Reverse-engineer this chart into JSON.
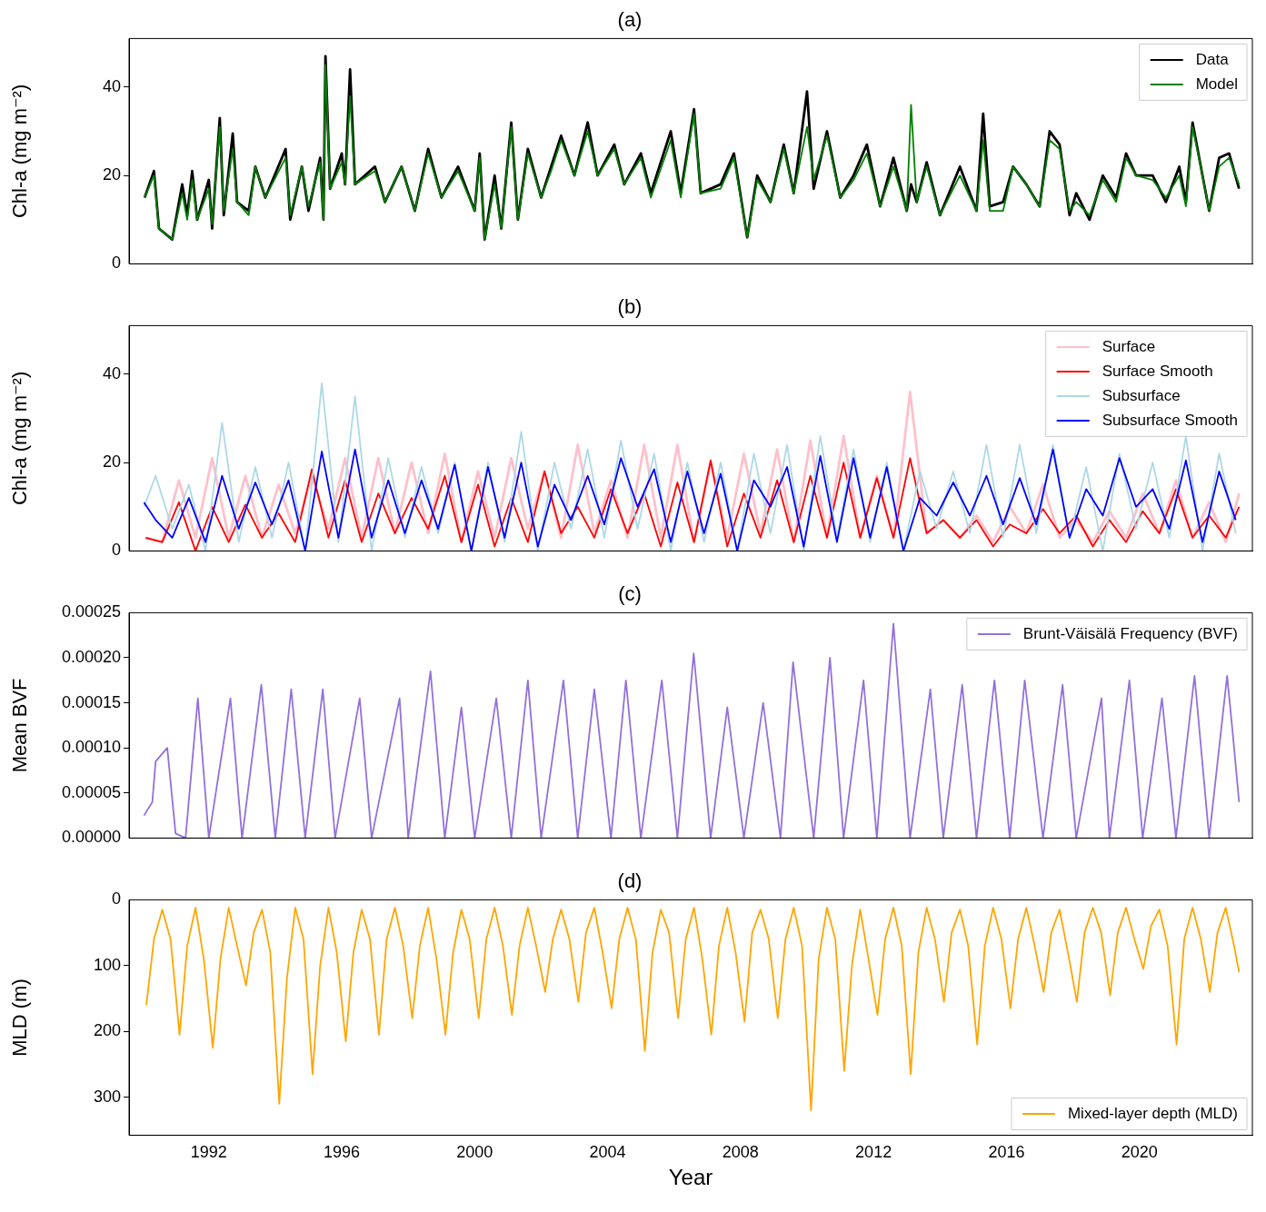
{
  "chart_data": [
    {
      "type": "line",
      "title": "(a)",
      "ylabel": "Chl-a (mg m⁻²)",
      "xlim": [
        1989.6,
        2023.4
      ],
      "xticks": [
        1992,
        1996,
        2000,
        2004,
        2008,
        2012,
        2016,
        2020
      ],
      "ylim": [
        0,
        51
      ],
      "yticks": [
        0,
        20,
        40
      ],
      "tick_labels": "y",
      "legend": "top right",
      "x": [
        1990.07,
        1990.35,
        1990.5,
        1990.9,
        1991.2,
        1991.35,
        1991.5,
        1991.65,
        1992.0,
        1992.1,
        1992.33,
        1992.45,
        1992.72,
        1992.85,
        1993.2,
        1993.4,
        1993.7,
        1994.31,
        1994.45,
        1994.8,
        1995.0,
        1995.35,
        1995.45,
        1995.51,
        1995.65,
        1996.0,
        1996.1,
        1996.25,
        1996.4,
        1997.0,
        1997.3,
        1997.8,
        1998.2,
        1998.6,
        1999.0,
        1999.5,
        2000.0,
        2000.15,
        2000.3,
        2000.6,
        2000.8,
        2001.1,
        2001.3,
        2001.6,
        2002.0,
        2002.3,
        2002.6,
        2003.0,
        2003.4,
        2003.7,
        2004.2,
        2004.5,
        2005.0,
        2005.3,
        2005.9,
        2006.2,
        2006.6,
        2006.8,
        2007.4,
        2007.8,
        2008.2,
        2008.5,
        2008.9,
        2009.3,
        2009.6,
        2010.0,
        2010.2,
        2010.6,
        2011.0,
        2011.4,
        2011.8,
        2012.2,
        2012.6,
        2013.0,
        2013.13,
        2013.3,
        2013.6,
        2014.0,
        2014.6,
        2015.1,
        2015.3,
        2015.5,
        2015.9,
        2016.2,
        2016.6,
        2017.0,
        2017.3,
        2017.6,
        2017.9,
        2018.1,
        2018.5,
        2018.9,
        2019.3,
        2019.6,
        2019.9,
        2020.4,
        2020.8,
        2021.2,
        2021.4,
        2021.6,
        2021.9,
        2022.1,
        2022.4,
        2022.7,
        2023.0
      ],
      "series": [
        {
          "name": "Data",
          "color": "#000000",
          "values": [
            15,
            21,
            8,
            5.5,
            18,
            11,
            21,
            10,
            19,
            8,
            33,
            11,
            29.5,
            14,
            12,
            22,
            15,
            26,
            10,
            22,
            12,
            24,
            10,
            47,
            17,
            25,
            18,
            44,
            18,
            22,
            14,
            22,
            12,
            26,
            15,
            22,
            12,
            25,
            5.5,
            20,
            8,
            32,
            10,
            26,
            15,
            22,
            29,
            20,
            32,
            20,
            27,
            18,
            25,
            16,
            30,
            16,
            35,
            16,
            18,
            25,
            6,
            20,
            14,
            27,
            16,
            39,
            17,
            30,
            15,
            20,
            27,
            13,
            24,
            12,
            18,
            14,
            23,
            11,
            22,
            12,
            34,
            13,
            14,
            22,
            18,
            13,
            30,
            27,
            11,
            16,
            10,
            20,
            15,
            25,
            20,
            20,
            14,
            22,
            14,
            32,
            20,
            12,
            24,
            25,
            17
          ]
        },
        {
          "name": "Model",
          "color": "#008000",
          "values": [
            15,
            20,
            8,
            5.5,
            16,
            10,
            19,
            10,
            17,
            9,
            31,
            12,
            26,
            14,
            11,
            22,
            15,
            24,
            11,
            22,
            13,
            23,
            10,
            45,
            17,
            23,
            18,
            38,
            18,
            21,
            14,
            22,
            12,
            25,
            15,
            21,
            12,
            24,
            5.5,
            18,
            8,
            31,
            10,
            25,
            15,
            21,
            28,
            20,
            30,
            20,
            26,
            18,
            24,
            15,
            28,
            15,
            34,
            16,
            17,
            24,
            6,
            19,
            14,
            26,
            16,
            31,
            19,
            29,
            15,
            19,
            25,
            13,
            22,
            12,
            36,
            14,
            22,
            11,
            20,
            12,
            28,
            12,
            12,
            22,
            18,
            13,
            28,
            26,
            12,
            14,
            11,
            19,
            14,
            24,
            20,
            19,
            15,
            20,
            13,
            31,
            20,
            12,
            22,
            24,
            18
          ]
        }
      ]
    },
    {
      "type": "line",
      "title": "(b)",
      "ylabel": "Chl-a (mg m⁻²)",
      "xlim": [
        1989.6,
        2023.4
      ],
      "xticks": [
        1992,
        1996,
        2000,
        2004,
        2008,
        2012,
        2016,
        2020
      ],
      "ylim": [
        0,
        51
      ],
      "yticks": [
        0,
        20,
        40
      ],
      "tick_labels": "y",
      "legend": "top right",
      "series": [
        {
          "name": "Surface",
          "color": "#ffc0cb",
          "x": [
            1990.1,
            1990.6,
            1991.1,
            1991.6,
            1992.1,
            1992.6,
            1993.1,
            1993.6,
            1994.1,
            1994.6,
            1995.1,
            1995.6,
            1996.1,
            1996.6,
            1997.1,
            1997.6,
            1998.1,
            1998.6,
            1999.1,
            1999.6,
            2000.1,
            2000.6,
            2001.1,
            2001.6,
            2002.1,
            2002.6,
            2003.1,
            2003.6,
            2004.1,
            2004.6,
            2005.1,
            2005.6,
            2006.1,
            2006.6,
            2007.1,
            2007.6,
            2008.1,
            2008.6,
            2009.1,
            2009.6,
            2010.1,
            2010.6,
            2011.1,
            2011.6,
            2012.1,
            2012.6,
            2013.1,
            2013.6,
            2014.1,
            2014.6,
            2015.1,
            2015.6,
            2016.1,
            2016.6,
            2017.1,
            2017.6,
            2018.1,
            2018.6,
            2019.1,
            2019.6,
            2020.1,
            2020.6,
            2021.1,
            2021.6,
            2022.1,
            2022.6,
            2023.0
          ],
          "values": [
            3,
            2,
            16,
            3,
            21,
            3,
            17,
            3,
            15,
            4,
            17,
            5,
            21,
            3,
            21,
            4,
            20,
            4,
            22,
            2,
            18,
            3,
            21,
            5,
            18,
            3,
            24,
            4,
            16,
            3,
            24,
            3,
            24,
            2,
            20,
            3,
            22,
            4,
            23,
            2,
            25,
            3,
            26,
            3,
            17,
            3,
            36,
            4,
            7,
            3,
            8,
            2,
            10,
            4,
            15,
            3,
            7,
            2,
            9,
            3,
            13,
            4,
            16,
            3,
            11,
            2,
            13
          ]
        },
        {
          "name": "Surface Smooth",
          "color": "#ff0000",
          "x": [
            1990.1,
            1990.6,
            1991.1,
            1991.6,
            1992.1,
            1992.6,
            1993.1,
            1993.6,
            1994.1,
            1994.6,
            1995.1,
            1995.6,
            1996.1,
            1996.6,
            1997.1,
            1997.6,
            1998.1,
            1998.6,
            1999.1,
            1999.6,
            2000.1,
            2000.6,
            2001.1,
            2001.6,
            2002.1,
            2002.6,
            2003.1,
            2003.6,
            2004.1,
            2004.6,
            2005.1,
            2005.6,
            2006.1,
            2006.6,
            2007.1,
            2007.6,
            2008.1,
            2008.6,
            2009.1,
            2009.6,
            2010.1,
            2010.6,
            2011.1,
            2011.6,
            2012.1,
            2012.6,
            2013.1,
            2013.6,
            2014.1,
            2014.6,
            2015.1,
            2015.6,
            2016.1,
            2016.6,
            2017.1,
            2017.6,
            2018.1,
            2018.6,
            2019.1,
            2019.6,
            2020.1,
            2020.6,
            2021.1,
            2021.6,
            2022.1,
            2022.6,
            2023.0
          ],
          "values": [
            3,
            2,
            11,
            0,
            10,
            2,
            10.5,
            3,
            8.5,
            2,
            18.5,
            3,
            16,
            2,
            13,
            4,
            12,
            5,
            17,
            2,
            15,
            1,
            12,
            2,
            18,
            4,
            10,
            3,
            14,
            4,
            13,
            1,
            15.5,
            2,
            20.5,
            1,
            13,
            3,
            16,
            2,
            17,
            3,
            20,
            3,
            16.5,
            3,
            21,
            4,
            7,
            3,
            7,
            1,
            6,
            4,
            9.5,
            4,
            8,
            1,
            7,
            2,
            9,
            4,
            14,
            3,
            8,
            3,
            10
          ]
        },
        {
          "name": "Subsurface",
          "color": "#add8e6",
          "x": [
            1990.05,
            1990.4,
            1990.9,
            1991.4,
            1991.9,
            1992.4,
            1992.9,
            1993.4,
            1993.9,
            1994.4,
            1994.9,
            1995.4,
            1995.9,
            1996.4,
            1996.9,
            1997.4,
            1997.9,
            1998.4,
            1998.9,
            1999.4,
            1999.9,
            2000.4,
            2000.9,
            2001.4,
            2001.9,
            2002.4,
            2002.9,
            2003.4,
            2003.9,
            2004.4,
            2004.9,
            2005.4,
            2005.9,
            2006.4,
            2006.9,
            2007.4,
            2007.9,
            2008.4,
            2008.9,
            2009.4,
            2009.9,
            2010.4,
            2010.9,
            2011.4,
            2011.9,
            2012.4,
            2012.9,
            2013.4,
            2013.9,
            2014.4,
            2014.9,
            2015.4,
            2015.9,
            2016.4,
            2016.9,
            2017.4,
            2017.9,
            2018.4,
            2018.9,
            2019.4,
            2019.9,
            2020.4,
            2020.9,
            2021.4,
            2021.9,
            2022.4,
            2022.9
          ],
          "values": [
            10,
            17,
            5,
            15,
            0,
            29,
            2,
            19,
            3,
            20,
            0,
            38,
            2,
            35,
            0,
            21,
            3,
            19,
            4,
            20,
            0,
            20,
            2,
            27,
            0,
            20,
            5,
            23,
            3,
            25,
            5,
            22,
            0,
            20,
            2,
            20,
            0,
            22,
            4,
            24,
            0,
            26,
            3,
            23,
            2,
            20,
            0,
            18,
            5,
            18,
            4,
            24,
            3,
            24,
            4,
            24,
            3,
            19,
            0,
            22,
            5,
            20,
            3,
            26,
            0,
            22,
            4
          ]
        },
        {
          "name": "Subsurface Smooth",
          "color": "#0000ff",
          "x": [
            1990.05,
            1990.4,
            1990.9,
            1991.4,
            1991.9,
            1992.4,
            1992.9,
            1993.4,
            1993.9,
            1994.4,
            1994.9,
            1995.4,
            1995.9,
            1996.4,
            1996.9,
            1997.4,
            1997.9,
            1998.4,
            1998.9,
            1999.4,
            1999.9,
            2000.4,
            2000.9,
            2001.4,
            2001.9,
            2002.4,
            2002.9,
            2003.4,
            2003.9,
            2004.4,
            2004.9,
            2005.4,
            2005.9,
            2006.4,
            2006.9,
            2007.4,
            2007.9,
            2008.4,
            2008.9,
            2009.4,
            2009.9,
            2010.4,
            2010.9,
            2011.4,
            2011.9,
            2012.4,
            2012.9,
            2013.4,
            2013.9,
            2014.4,
            2014.9,
            2015.4,
            2015.9,
            2016.4,
            2016.9,
            2017.4,
            2017.9,
            2018.4,
            2018.9,
            2019.4,
            2019.9,
            2020.4,
            2020.9,
            2021.4,
            2021.9,
            2022.4,
            2022.9
          ],
          "values": [
            11,
            7,
            3,
            12,
            2,
            17,
            5,
            15.5,
            6,
            16,
            0,
            22.5,
            3,
            23,
            3,
            16,
            4,
            16,
            5,
            19.5,
            0,
            19,
            3,
            20,
            1,
            15,
            7,
            17,
            6,
            21,
            10,
            18.5,
            2,
            18,
            4,
            17.5,
            0,
            16,
            10,
            19,
            1,
            21.5,
            2,
            21,
            3,
            19,
            0,
            12,
            8,
            15.5,
            8,
            17,
            6,
            16.5,
            6,
            23,
            3,
            14,
            8,
            21,
            10,
            14,
            5,
            20.5,
            2,
            18,
            7
          ]
        }
      ]
    },
    {
      "type": "line",
      "title": "(c)",
      "ylabel": "Mean BVF",
      "xlim": [
        1989.6,
        2023.4
      ],
      "xticks": [
        1992,
        1996,
        2000,
        2004,
        2008,
        2012,
        2016,
        2020
      ],
      "ylim": [
        0,
        0.00025
      ],
      "yticks": [
        {
          "value": 0,
          "label": "0.00000"
        },
        {
          "value": 5e-05,
          "label": "0.00005"
        },
        {
          "value": 0.0001,
          "label": "0.00010"
        },
        {
          "value": 0.00015,
          "label": "0.00015"
        },
        {
          "value": 0.0002,
          "label": "0.00020"
        },
        {
          "value": 0.00025,
          "label": "0.00025"
        }
      ],
      "tick_labels": "y",
      "legend": "top right",
      "series": [
        {
          "name": "Brunt-Väisälä Frequency (BVF)",
          "color": "#9370db",
          "x": [
            1990.05,
            1990.3,
            1990.4,
            1990.75,
            1991.0,
            1991.3,
            1991.67,
            1992.0,
            1992.65,
            1993.0,
            1993.58,
            1994.0,
            1994.48,
            1994.9,
            1995.43,
            1995.8,
            1996.54,
            1996.9,
            1997.74,
            1998.0,
            1998.67,
            1999.1,
            1999.6,
            2000.0,
            2000.65,
            2001.1,
            2001.6,
            2002.0,
            2002.67,
            2003.1,
            2003.6,
            2004.1,
            2004.55,
            2005.0,
            2005.63,
            2006.1,
            2006.59,
            2007.1,
            2007.6,
            2008.1,
            2008.68,
            2009.2,
            2009.58,
            2010.2,
            2010.69,
            2011.1,
            2011.7,
            2012.1,
            2012.6,
            2013.1,
            2013.71,
            2014.1,
            2014.67,
            2015.1,
            2015.64,
            2016.1,
            2016.55,
            2017.1,
            2017.69,
            2018.1,
            2018.86,
            2019.1,
            2019.7,
            2020.1,
            2020.68,
            2021.1,
            2021.66,
            2022.1,
            2022.64,
            2022.8,
            2023.0
          ],
          "values": [
            2.5e-05,
            4e-05,
            8.5e-05,
            0.0001,
            5e-06,
            0,
            0.000155,
            0,
            0.000155,
            0,
            0.00017,
            0,
            0.000165,
            0,
            0.000165,
            0,
            0.000155,
            0,
            0.000155,
            0,
            0.000185,
            0,
            0.000145,
            0,
            0.000155,
            0,
            0.000175,
            0,
            0.000175,
            0,
            0.000165,
            0,
            0.000175,
            0,
            0.000175,
            0,
            0.000205,
            0,
            0.000145,
            0,
            0.00015,
            0,
            0.000195,
            0,
            0.0002,
            0,
            0.000175,
            0,
            0.000238,
            0,
            0.000165,
            0,
            0.00017,
            0,
            0.000175,
            0,
            0.000175,
            0,
            0.00017,
            0,
            0.000155,
            0,
            0.000175,
            0,
            0.000155,
            0,
            0.00018,
            0,
            0.00018,
            0.00012,
            4e-05
          ]
        }
      ]
    },
    {
      "type": "line",
      "title": "(d)",
      "xlabel": "Year",
      "ylabel": "MLD (m)",
      "xlim": [
        1989.6,
        2023.4
      ],
      "xticks": [
        1992,
        1996,
        2000,
        2004,
        2008,
        2012,
        2016,
        2020
      ],
      "ylim": [
        358,
        0
      ],
      "yticks": [
        0,
        100,
        200,
        300
      ],
      "legend": "bottom right",
      "series": [
        {
          "name": "Mixed-layer depth (MLD)",
          "color": "#ffa500",
          "x": [
            1990.12,
            1990.35,
            1990.6,
            1990.85,
            1991.12,
            1991.35,
            1991.6,
            1991.85,
            1992.12,
            1992.35,
            1992.6,
            1992.85,
            1993.12,
            1993.35,
            1993.6,
            1993.85,
            1994.12,
            1994.35,
            1994.6,
            1994.85,
            1995.12,
            1995.35,
            1995.6,
            1995.85,
            1996.12,
            1996.35,
            1996.6,
            1996.85,
            1997.12,
            1997.35,
            1997.6,
            1997.85,
            1998.12,
            1998.35,
            1998.6,
            1998.85,
            1999.12,
            1999.35,
            1999.6,
            1999.85,
            2000.12,
            2000.35,
            2000.6,
            2000.85,
            2001.12,
            2001.35,
            2001.6,
            2001.85,
            2002.12,
            2002.35,
            2002.6,
            2002.85,
            2003.12,
            2003.35,
            2003.6,
            2003.85,
            2004.12,
            2004.35,
            2004.6,
            2004.85,
            2005.12,
            2005.35,
            2005.6,
            2005.85,
            2006.12,
            2006.35,
            2006.6,
            2006.85,
            2007.12,
            2007.35,
            2007.6,
            2007.85,
            2008.12,
            2008.35,
            2008.6,
            2008.85,
            2009.12,
            2009.35,
            2009.6,
            2009.85,
            2010.12,
            2010.35,
            2010.6,
            2010.85,
            2011.12,
            2011.35,
            2011.6,
            2011.85,
            2012.12,
            2012.35,
            2012.6,
            2012.85,
            2013.12,
            2013.35,
            2013.6,
            2013.85,
            2014.12,
            2014.35,
            2014.6,
            2014.85,
            2015.12,
            2015.35,
            2015.6,
            2015.85,
            2016.12,
            2016.35,
            2016.6,
            2016.85,
            2017.12,
            2017.35,
            2017.6,
            2017.85,
            2018.12,
            2018.35,
            2018.6,
            2018.85,
            2019.12,
            2019.35,
            2019.6,
            2019.85,
            2020.12,
            2020.35,
            2020.6,
            2020.85,
            2021.12,
            2021.35,
            2021.6,
            2021.85,
            2022.12,
            2022.35,
            2022.6,
            2022.85,
            2023.0
          ],
          "values": [
            160,
            60,
            15,
            60,
            205,
            70,
            12,
            90,
            225,
            90,
            12,
            70,
            130,
            50,
            15,
            80,
            310,
            120,
            12,
            60,
            265,
            100,
            12,
            80,
            215,
            80,
            15,
            60,
            205,
            60,
            12,
            70,
            180,
            70,
            12,
            90,
            205,
            80,
            15,
            60,
            180,
            60,
            12,
            70,
            175,
            70,
            12,
            70,
            140,
            60,
            15,
            60,
            155,
            50,
            12,
            80,
            165,
            60,
            12,
            60,
            230,
            80,
            15,
            50,
            180,
            60,
            12,
            90,
            205,
            70,
            12,
            80,
            185,
            50,
            15,
            60,
            180,
            60,
            12,
            70,
            320,
            90,
            12,
            60,
            260,
            100,
            15,
            90,
            175,
            60,
            12,
            70,
            265,
            80,
            12,
            60,
            155,
            50,
            15,
            70,
            220,
            70,
            12,
            60,
            165,
            60,
            12,
            70,
            140,
            50,
            15,
            80,
            155,
            50,
            12,
            50,
            145,
            50,
            12,
            60,
            105,
            40,
            15,
            70,
            220,
            60,
            12,
            60,
            140,
            50,
            12,
            70,
            110
          ]
        }
      ]
    }
  ]
}
